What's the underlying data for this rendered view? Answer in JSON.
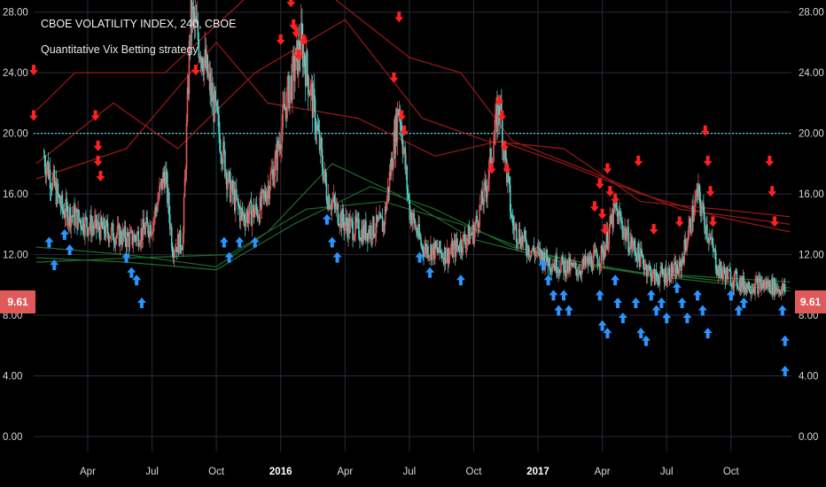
{
  "header": {
    "title": "CBOE VOLATILITY INDEX, 240, CBOE",
    "subtitle": "Quantitative Vix Betting strategy"
  },
  "price_badge": "9.61",
  "colors": {
    "background": "#000000",
    "grid": "#2a2a3a",
    "dotted_level": "#4fd1d9",
    "up_candle": "#4fd1c5",
    "down_candle": "#e05a5a",
    "red_ma": "#a01818",
    "green_ma": "#1e6b2a",
    "sell_arrow": "#ff2020",
    "buy_arrow": "#2a95ff",
    "badge": "#e05a5a"
  },
  "chart_data": {
    "type": "candlestick",
    "title": "CBOE VOLATILITY INDEX, 240, CBOE",
    "subtitle": "Quantitative Vix Betting strategy",
    "ylim": [
      0,
      28.8
    ],
    "y_ticks": [
      "0.00",
      "4.00",
      "8.00",
      "12.00",
      "16.00",
      "20.00",
      "24.00",
      "28.00"
    ],
    "x_tick_labels": [
      "Apr",
      "Jul",
      "Oct",
      "2016",
      "Apr",
      "Jul",
      "Oct",
      "2017",
      "Apr",
      "Jul",
      "Oct"
    ],
    "x_tick_bold": [
      "2016",
      "2017"
    ],
    "time_range": [
      "2015-02",
      "2017-12"
    ],
    "last_price": 9.61,
    "horizontal_level": 20.0,
    "close_approx": [
      [
        2015.08,
        18.5
      ],
      [
        2015.15,
        15.0
      ],
      [
        2015.25,
        14.0
      ],
      [
        2015.33,
        13.5
      ],
      [
        2015.42,
        13.0
      ],
      [
        2015.5,
        14.0
      ],
      [
        2015.55,
        17.5
      ],
      [
        2015.58,
        12.5
      ],
      [
        2015.62,
        13.0
      ],
      [
        2015.65,
        28.0
      ],
      [
        2015.7,
        25.0
      ],
      [
        2015.75,
        21.0
      ],
      [
        2015.8,
        16.5
      ],
      [
        2015.85,
        14.5
      ],
      [
        2015.92,
        15.0
      ],
      [
        2015.98,
        18.0
      ],
      [
        2016.02,
        22.0
      ],
      [
        2016.08,
        26.0
      ],
      [
        2016.12,
        22.5
      ],
      [
        2016.18,
        16.0
      ],
      [
        2016.25,
        14.0
      ],
      [
        2016.32,
        13.5
      ],
      [
        2016.4,
        14.0
      ],
      [
        2016.46,
        22.0
      ],
      [
        2016.5,
        15.0
      ],
      [
        2016.55,
        12.5
      ],
      [
        2016.65,
        12.0
      ],
      [
        2016.75,
        13.5
      ],
      [
        2016.8,
        16.5
      ],
      [
        2016.85,
        22.0
      ],
      [
        2016.9,
        14.0
      ],
      [
        2016.96,
        12.5
      ],
      [
        2017.05,
        11.5
      ],
      [
        2017.15,
        11.0
      ],
      [
        2017.25,
        12.0
      ],
      [
        2017.3,
        15.0
      ],
      [
        2017.35,
        13.0
      ],
      [
        2017.45,
        10.5
      ],
      [
        2017.55,
        11.0
      ],
      [
        2017.62,
        16.0
      ],
      [
        2017.7,
        11.0
      ],
      [
        2017.8,
        10.0
      ],
      [
        2017.9,
        10.0
      ],
      [
        2017.96,
        9.61
      ]
    ],
    "series": [
      {
        "name": "",
        "values": [
          [
            2015.05,
            21.5
          ],
          [
            2015.2,
            24.0
          ],
          [
            2015.55,
            24.0
          ],
          [
            2015.9,
            29.5
          ],
          [
            2016.2,
            29.0
          ],
          [
            2016.5,
            25.0
          ],
          [
            2016.7,
            24.0
          ],
          [
            2016.9,
            19.5
          ],
          [
            2017.2,
            17.5
          ],
          [
            2017.55,
            15.0
          ],
          [
            2017.98,
            14.0
          ]
        ]
      },
      {
        "name": "",
        "values": [
          [
            2015.05,
            18.0
          ],
          [
            2015.35,
            22.0
          ],
          [
            2015.6,
            19.0
          ],
          [
            2015.9,
            24.0
          ],
          [
            2016.25,
            27.5
          ],
          [
            2016.55,
            21.0
          ],
          [
            2016.8,
            19.5
          ],
          [
            2017.1,
            19.0
          ],
          [
            2017.4,
            15.5
          ],
          [
            2017.7,
            15.0
          ],
          [
            2017.98,
            14.5
          ]
        ]
      },
      {
        "name": "",
        "values": [
          [
            2015.05,
            17.0
          ],
          [
            2015.4,
            19.0
          ],
          [
            2015.75,
            26.0
          ],
          [
            2015.95,
            22.0
          ],
          [
            2016.3,
            21.0
          ],
          [
            2016.6,
            18.5
          ],
          [
            2016.85,
            19.5
          ],
          [
            2017.1,
            18.0
          ],
          [
            2017.4,
            16.0
          ],
          [
            2017.7,
            14.5
          ],
          [
            2017.98,
            13.5
          ]
        ]
      },
      {
        "name": "",
        "values": [
          [
            2015.05,
            12.5
          ],
          [
            2015.4,
            12.0
          ],
          [
            2015.75,
            11.2
          ],
          [
            2015.95,
            13.5
          ],
          [
            2016.2,
            18.0
          ],
          [
            2016.45,
            16.0
          ],
          [
            2016.75,
            13.0
          ],
          [
            2017.1,
            11.5
          ],
          [
            2017.5,
            10.5
          ],
          [
            2017.98,
            9.6
          ]
        ]
      },
      {
        "name": "",
        "values": [
          [
            2015.05,
            11.8
          ],
          [
            2015.4,
            11.5
          ],
          [
            2015.75,
            11.0
          ],
          [
            2016.05,
            14.0
          ],
          [
            2016.35,
            16.5
          ],
          [
            2016.6,
            15.0
          ],
          [
            2016.9,
            12.5
          ],
          [
            2017.3,
            11.0
          ],
          [
            2017.98,
            9.8
          ]
        ]
      },
      {
        "name": "",
        "values": [
          [
            2015.05,
            11.5
          ],
          [
            2015.45,
            11.8
          ],
          [
            2015.8,
            12.0
          ],
          [
            2016.1,
            15.0
          ],
          [
            2016.4,
            15.5
          ],
          [
            2016.7,
            14.0
          ],
          [
            2017.0,
            12.0
          ],
          [
            2017.4,
            10.8
          ],
          [
            2017.98,
            10.2
          ]
        ]
      }
    ],
    "sell_signals": [
      [
        2015.04,
        24.0
      ],
      [
        2015.04,
        21.0
      ],
      [
        2015.28,
        21.0
      ],
      [
        2015.29,
        19.0
      ],
      [
        2015.29,
        18.0
      ],
      [
        2015.3,
        17.0
      ],
      [
        2015.67,
        24.0
      ],
      [
        2016.0,
        26.0
      ],
      [
        2016.04,
        28.5
      ],
      [
        2016.05,
        27.0
      ],
      [
        2016.06,
        26.5
      ],
      [
        2016.07,
        25.0
      ],
      [
        2016.09,
        26.0
      ],
      [
        2016.45,
        29.5
      ],
      [
        2016.46,
        27.5
      ],
      [
        2016.44,
        23.5
      ],
      [
        2016.47,
        21.0
      ],
      [
        2016.48,
        20.0
      ],
      [
        2016.82,
        17.5
      ],
      [
        2016.85,
        22.0
      ],
      [
        2016.86,
        21.0
      ],
      [
        2016.87,
        19.0
      ],
      [
        2016.88,
        17.5
      ],
      [
        2017.22,
        15.0
      ],
      [
        2017.24,
        16.5
      ],
      [
        2017.25,
        14.5
      ],
      [
        2017.26,
        13.5
      ],
      [
        2017.27,
        17.5
      ],
      [
        2017.28,
        16.0
      ],
      [
        2017.3,
        15.5
      ],
      [
        2017.39,
        18.0
      ],
      [
        2017.45,
        13.5
      ],
      [
        2017.55,
        14.0
      ],
      [
        2017.65,
        20.0
      ],
      [
        2017.66,
        18.0
      ],
      [
        2017.67,
        16.0
      ],
      [
        2017.68,
        14.0
      ],
      [
        2017.9,
        18.0
      ],
      [
        2017.91,
        16.0
      ],
      [
        2017.92,
        14.0
      ]
    ],
    "buy_signals": [
      [
        2015.1,
        13.0
      ],
      [
        2015.12,
        11.5
      ],
      [
        2015.16,
        13.5
      ],
      [
        2015.18,
        12.5
      ],
      [
        2015.4,
        12.0
      ],
      [
        2015.42,
        11.0
      ],
      [
        2015.44,
        10.5
      ],
      [
        2015.46,
        9.0
      ],
      [
        2015.78,
        13.0
      ],
      [
        2015.8,
        12.0
      ],
      [
        2015.84,
        13.0
      ],
      [
        2015.9,
        13.0
      ],
      [
        2016.18,
        14.5
      ],
      [
        2016.2,
        13.0
      ],
      [
        2016.22,
        12.0
      ],
      [
        2016.54,
        12.0
      ],
      [
        2016.58,
        11.0
      ],
      [
        2016.7,
        10.5
      ],
      [
        2017.02,
        11.5
      ],
      [
        2017.04,
        10.5
      ],
      [
        2017.06,
        9.5
      ],
      [
        2017.08,
        8.5
      ],
      [
        2017.1,
        9.5
      ],
      [
        2017.12,
        8.5
      ],
      [
        2017.24,
        9.5
      ],
      [
        2017.25,
        7.5
      ],
      [
        2017.27,
        7.0
      ],
      [
        2017.3,
        10.5
      ],
      [
        2017.31,
        9.0
      ],
      [
        2017.33,
        8.0
      ],
      [
        2017.38,
        9.0
      ],
      [
        2017.4,
        7.0
      ],
      [
        2017.42,
        6.5
      ],
      [
        2017.44,
        9.5
      ],
      [
        2017.46,
        8.5
      ],
      [
        2017.48,
        9.0
      ],
      [
        2017.5,
        8.0
      ],
      [
        2017.54,
        10.0
      ],
      [
        2017.56,
        9.0
      ],
      [
        2017.58,
        8.0
      ],
      [
        2017.62,
        9.5
      ],
      [
        2017.64,
        8.5
      ],
      [
        2017.66,
        7.0
      ],
      [
        2017.75,
        9.5
      ],
      [
        2017.78,
        8.5
      ],
      [
        2017.8,
        9.0
      ],
      [
        2017.95,
        8.5
      ],
      [
        2017.96,
        6.5
      ],
      [
        2017.96,
        4.5
      ]
    ]
  }
}
